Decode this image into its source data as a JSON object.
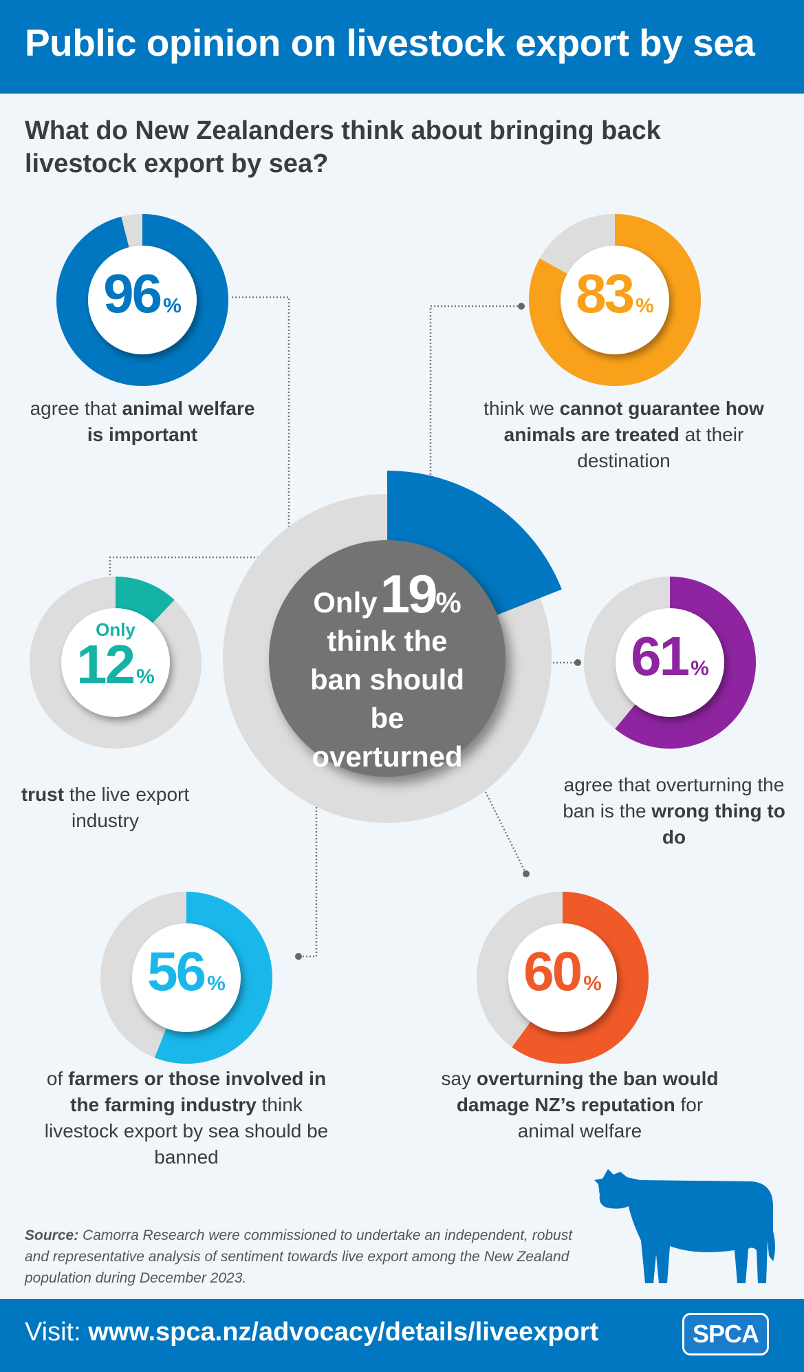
{
  "header": {
    "title": "Public opinion on livestock export by sea"
  },
  "subtitle": "What do New Zealanders think about bringing back livestock export by sea?",
  "colors": {
    "brand": "#0077c0",
    "ring": "#dddddd",
    "center": "#737373"
  },
  "stats": [
    {
      "id": "animal-welfare",
      "value": 96,
      "color": "#0077c0",
      "only": "",
      "caption": [
        {
          "t": "agree that ",
          "b": false
        },
        {
          "t": "animal welfare is important",
          "b": true
        }
      ]
    },
    {
      "id": "destination",
      "value": 83,
      "color": "#f9a11b",
      "only": "",
      "caption": [
        {
          "t": "think we ",
          "b": false
        },
        {
          "t": "cannot guarantee how animals are treated",
          "b": true
        },
        {
          "t": " at their destination",
          "b": false
        }
      ]
    },
    {
      "id": "trust",
      "value": 12,
      "color": "#14b3a6",
      "only": "Only",
      "caption": [
        {
          "t": "trust",
          "b": true
        },
        {
          "t": " the live export industry",
          "b": false
        }
      ]
    },
    {
      "id": "wrong-thing",
      "value": 61,
      "color": "#8e24a0",
      "only": "",
      "caption": [
        {
          "t": "agree that overturning the ban is the ",
          "b": false
        },
        {
          "t": "wrong thing to do",
          "b": true
        }
      ]
    },
    {
      "id": "farmers",
      "value": 56,
      "color": "#1ab7ea",
      "only": "",
      "caption": [
        {
          "t": "of ",
          "b": false
        },
        {
          "t": "farmers or those involved in the farming industry",
          "b": true
        },
        {
          "t": " think livestock export by sea should be banned",
          "b": false
        }
      ]
    },
    {
      "id": "reputation",
      "value": 60,
      "color": "#f05a28",
      "only": "",
      "caption": [
        {
          "t": "say ",
          "b": false
        },
        {
          "t": "overturning the ban would damage NZ’s reputation",
          "b": true
        },
        {
          "t": " for animal welfare",
          "b": false
        }
      ]
    }
  ],
  "central": {
    "only": "Only",
    "value": 19,
    "pct_sign": "%",
    "text": "think the ban should be overturned",
    "color": "#0077c0"
  },
  "pct_sign": "%",
  "source": {
    "label": "Source:",
    "text": " Camorra Research were commissioned to undertake an independent, robust and representative analysis of sentiment towards live export among the New Zealand population during December 2023."
  },
  "footer": {
    "visit_label": "Visit: ",
    "url": "www.spca.nz/advocacy/details/liveexport",
    "logo": "SPCA"
  },
  "chart_data": {
    "type": "pie",
    "title": "Public opinion on livestock export by sea",
    "categories": [
      "animal welfare is important",
      "cannot guarantee treatment at destination",
      "trust the live export industry",
      "overturning the ban is wrong",
      "farmers: should be banned",
      "damage NZ's reputation",
      "ban should be overturned"
    ],
    "values": [
      96,
      83,
      12,
      61,
      56,
      60,
      19
    ],
    "unit": "%"
  }
}
